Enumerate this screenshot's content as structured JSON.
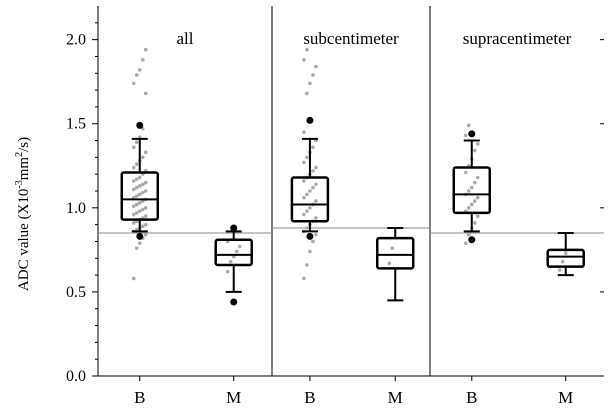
{
  "chart_data": {
    "type": "box",
    "ylabel": "ADC value (X10",
    "ylabel_sup1": "-3",
    "ylabel_mid": "mm",
    "ylabel_sup2": "2",
    "ylabel_end": "/s)",
    "ylim": [
      0,
      2.2
    ],
    "yticks": [
      "0.0",
      "0.5",
      "1.0",
      "1.5",
      "2.0"
    ],
    "ytick_values": [
      0,
      0.5,
      1.0,
      1.5,
      2.0
    ],
    "cutoff_values": [
      0.85,
      0.88,
      0.85
    ],
    "colors": {
      "points": "#aaaaaa",
      "outliers": "#000000",
      "box": "#000000",
      "cutoff": "#888888"
    },
    "panels": [
      {
        "title": "all",
        "categories": [
          "B",
          "M"
        ],
        "boxes": [
          {
            "category": "B",
            "whisker_low": 0.86,
            "q1": 0.93,
            "median": 1.05,
            "q3": 1.21,
            "whisker_high": 1.41,
            "outliers": [
              0.83,
              1.49
            ],
            "points": [
              0.58,
              0.76,
              0.79,
              0.82,
              0.84,
              0.86,
              0.87,
              0.88,
              0.89,
              0.9,
              0.91,
              0.92,
              0.93,
              0.94,
              0.95,
              0.96,
              0.97,
              0.98,
              0.99,
              1.0,
              1.01,
              1.02,
              1.03,
              1.04,
              1.05,
              1.06,
              1.07,
              1.08,
              1.09,
              1.1,
              1.11,
              1.12,
              1.13,
              1.14,
              1.15,
              1.16,
              1.17,
              1.18,
              1.2,
              1.22,
              1.24,
              1.26,
              1.28,
              1.3,
              1.33,
              1.36,
              1.39,
              1.42,
              1.47,
              1.68,
              1.74,
              1.79,
              1.82,
              1.88,
              1.94
            ]
          },
          {
            "category": "M",
            "whisker_low": 0.5,
            "q1": 0.66,
            "median": 0.72,
            "q3": 0.81,
            "whisker_high": 0.86,
            "outliers": [
              0.44,
              0.88
            ],
            "points": [
              0.62,
              0.68,
              0.71,
              0.74,
              0.77,
              0.8
            ]
          }
        ]
      },
      {
        "title": "subcentimeter",
        "categories": [
          "B",
          "M"
        ],
        "boxes": [
          {
            "category": "B",
            "whisker_low": 0.86,
            "q1": 0.92,
            "median": 1.02,
            "q3": 1.18,
            "whisker_high": 1.41,
            "outliers": [
              0.83,
              1.52
            ],
            "points": [
              0.58,
              0.66,
              0.74,
              0.8,
              0.84,
              0.86,
              0.88,
              0.9,
              0.92,
              0.94,
              0.96,
              0.98,
              1.0,
              1.02,
              1.04,
              1.06,
              1.08,
              1.1,
              1.12,
              1.14,
              1.16,
              1.18,
              1.2,
              1.22,
              1.24,
              1.27,
              1.3,
              1.33,
              1.36,
              1.4,
              1.45,
              1.68,
              1.74,
              1.79,
              1.84,
              1.88,
              1.94
            ]
          },
          {
            "category": "M",
            "whisker_low": 0.45,
            "q1": 0.64,
            "median": 0.72,
            "q3": 0.82,
            "whisker_high": 0.88,
            "outliers": [],
            "points": [
              0.67,
              0.76
            ]
          }
        ]
      },
      {
        "title": "supracentimeter",
        "categories": [
          "B",
          "M"
        ],
        "boxes": [
          {
            "category": "B",
            "whisker_low": 0.86,
            "q1": 0.97,
            "median": 1.08,
            "q3": 1.24,
            "whisker_high": 1.4,
            "outliers": [
              0.81,
              1.44
            ],
            "points": [
              0.79,
              0.84,
              0.88,
              0.91,
              0.95,
              0.98,
              1.0,
              1.02,
              1.04,
              1.06,
              1.08,
              1.1,
              1.12,
              1.15,
              1.18,
              1.21,
              1.25,
              1.29,
              1.34,
              1.38,
              1.43,
              1.49
            ]
          },
          {
            "category": "M",
            "whisker_low": 0.6,
            "q1": 0.65,
            "median": 0.71,
            "q3": 0.75,
            "whisker_high": 0.85,
            "outliers": [],
            "points": [
              0.63,
              0.68,
              0.73
            ]
          }
        ]
      }
    ]
  }
}
